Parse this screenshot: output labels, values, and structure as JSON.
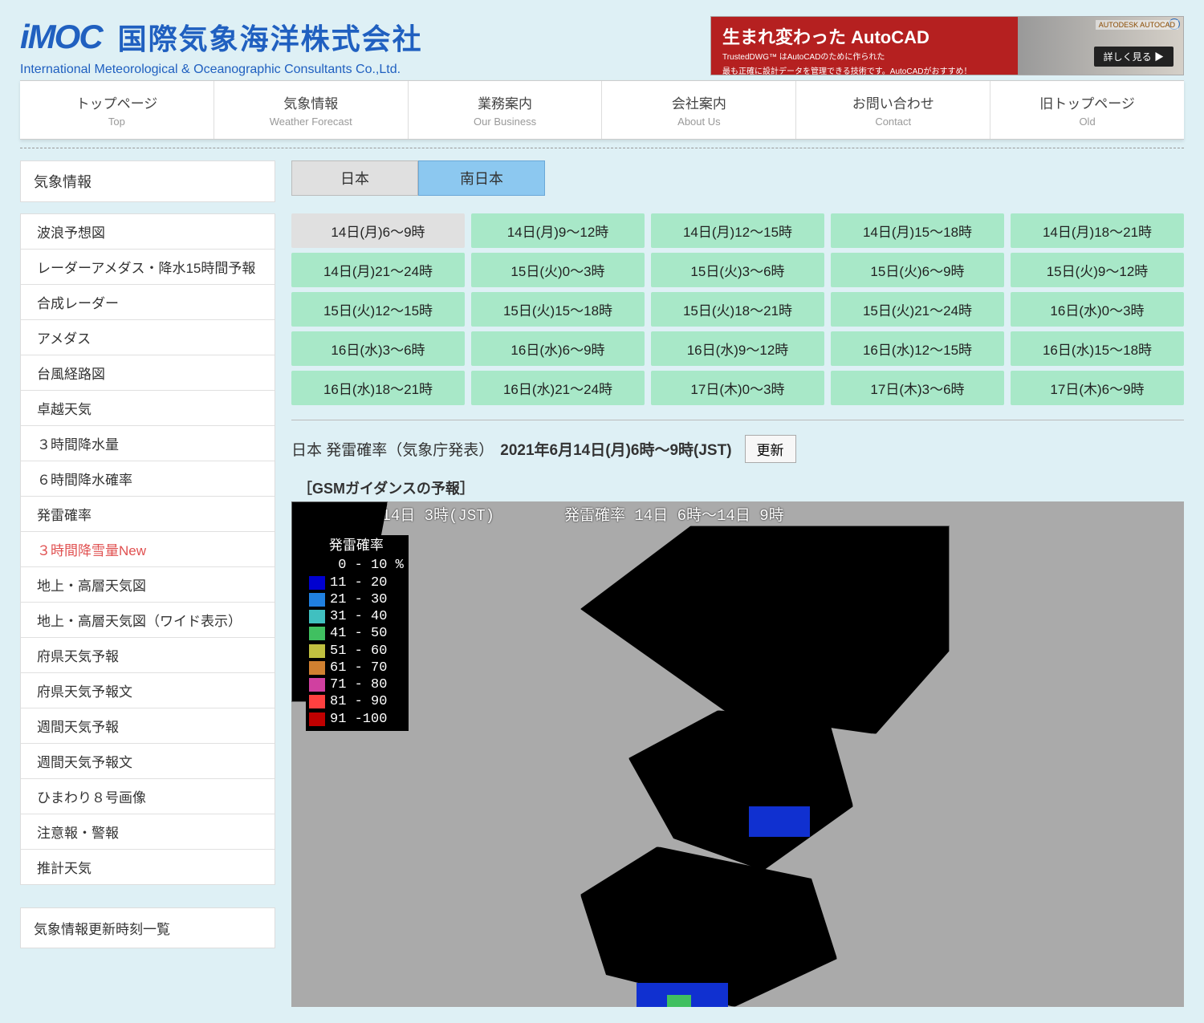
{
  "logo": {
    "mark": "iMOC",
    "jp": "国際気象海洋株式会社",
    "en": "International Meteorological & Oceanographic Consultants Co.,Ltd."
  },
  "ad": {
    "title": "生まれ変わった AutoCAD",
    "sub1": "TrustedDWG™ はAutoCADのために作られた",
    "sub2": "最も正確に設計データを管理できる技術です。AutoCADがおすすめ！",
    "btn": "詳しく見る ▶",
    "tag": "AUTODESK AUTOCAD"
  },
  "topnav": [
    {
      "jp": "トップページ",
      "en": "Top"
    },
    {
      "jp": "気象情報",
      "en": "Weather Forecast"
    },
    {
      "jp": "業務案内",
      "en": "Our Business"
    },
    {
      "jp": "会社案内",
      "en": "About Us"
    },
    {
      "jp": "お問い合わせ",
      "en": "Contact"
    },
    {
      "jp": "旧トップページ",
      "en": "Old"
    }
  ],
  "side_title": "気象情報",
  "side_items": [
    "波浪予想図",
    "レーダーアメダス・降水15時間予報",
    "合成レーダー",
    "アメダス",
    "台風経路図",
    "卓越天気",
    "３時間降水量",
    "６時間降水確率",
    "発雷確率",
    "３時間降雪量New",
    "地上・高層天気図",
    "地上・高層天気図（ワイド表示）",
    "府県天気予報",
    "府県天気予報文",
    "週間天気予報",
    "週間天気予報文",
    "ひまわり８号画像",
    "注意報・警報",
    "推計天気"
  ],
  "side_new_index": 9,
  "side_title2": "気象情報更新時刻一覧",
  "region_tabs": [
    "日本",
    "南日本"
  ],
  "region_active": 1,
  "time_cells": [
    "14日(月)6～9時",
    "14日(月)9～12時",
    "14日(月)12～15時",
    "14日(月)15～18時",
    "14日(月)18～21時",
    "14日(月)21～24時",
    "15日(火)0～3時",
    "15日(火)3～6時",
    "15日(火)6～9時",
    "15日(火)9～12時",
    "15日(火)12～15時",
    "15日(火)15～18時",
    "15日(火)18～21時",
    "15日(火)21～24時",
    "16日(水)0～3時",
    "16日(水)3～6時",
    "16日(水)6～9時",
    "16日(水)9～12時",
    "16日(水)12～15時",
    "16日(水)15～18時",
    "16日(水)18～21時",
    "16日(水)21～24時",
    "17日(木)0～3時",
    "17日(木)3～6時",
    "17日(木)6～9時"
  ],
  "time_active": 0,
  "chart": {
    "label": "日本 発雷確率（気象庁発表）",
    "datetime": "2021年6月14日(月)6時～9時(JST)",
    "refresh": "更新",
    "sub": "［GSMガイダンスの予報］",
    "stamp_left": "2021年 6月14日 3時(JST)",
    "stamp_right": "発雷確率 14日 6時～14日 9時"
  },
  "legend": {
    "title": "発雷確率",
    "rows": [
      {
        "color": "#000000",
        "label": " 0 - 10 %"
      },
      {
        "color": "#0000d0",
        "label": "11 - 20"
      },
      {
        "color": "#2080e0",
        "label": "21 - 30"
      },
      {
        "color": "#40c0c0",
        "label": "31 - 40"
      },
      {
        "color": "#40c060",
        "label": "41 - 50"
      },
      {
        "color": "#c0c040",
        "label": "51 - 60"
      },
      {
        "color": "#d08030",
        "label": "61 - 70"
      },
      {
        "color": "#d040a0",
        "label": "71 - 80"
      },
      {
        "color": "#ff4040",
        "label": "81 - 90"
      },
      {
        "color": "#c00000",
        "label": "91 -100"
      }
    ]
  }
}
